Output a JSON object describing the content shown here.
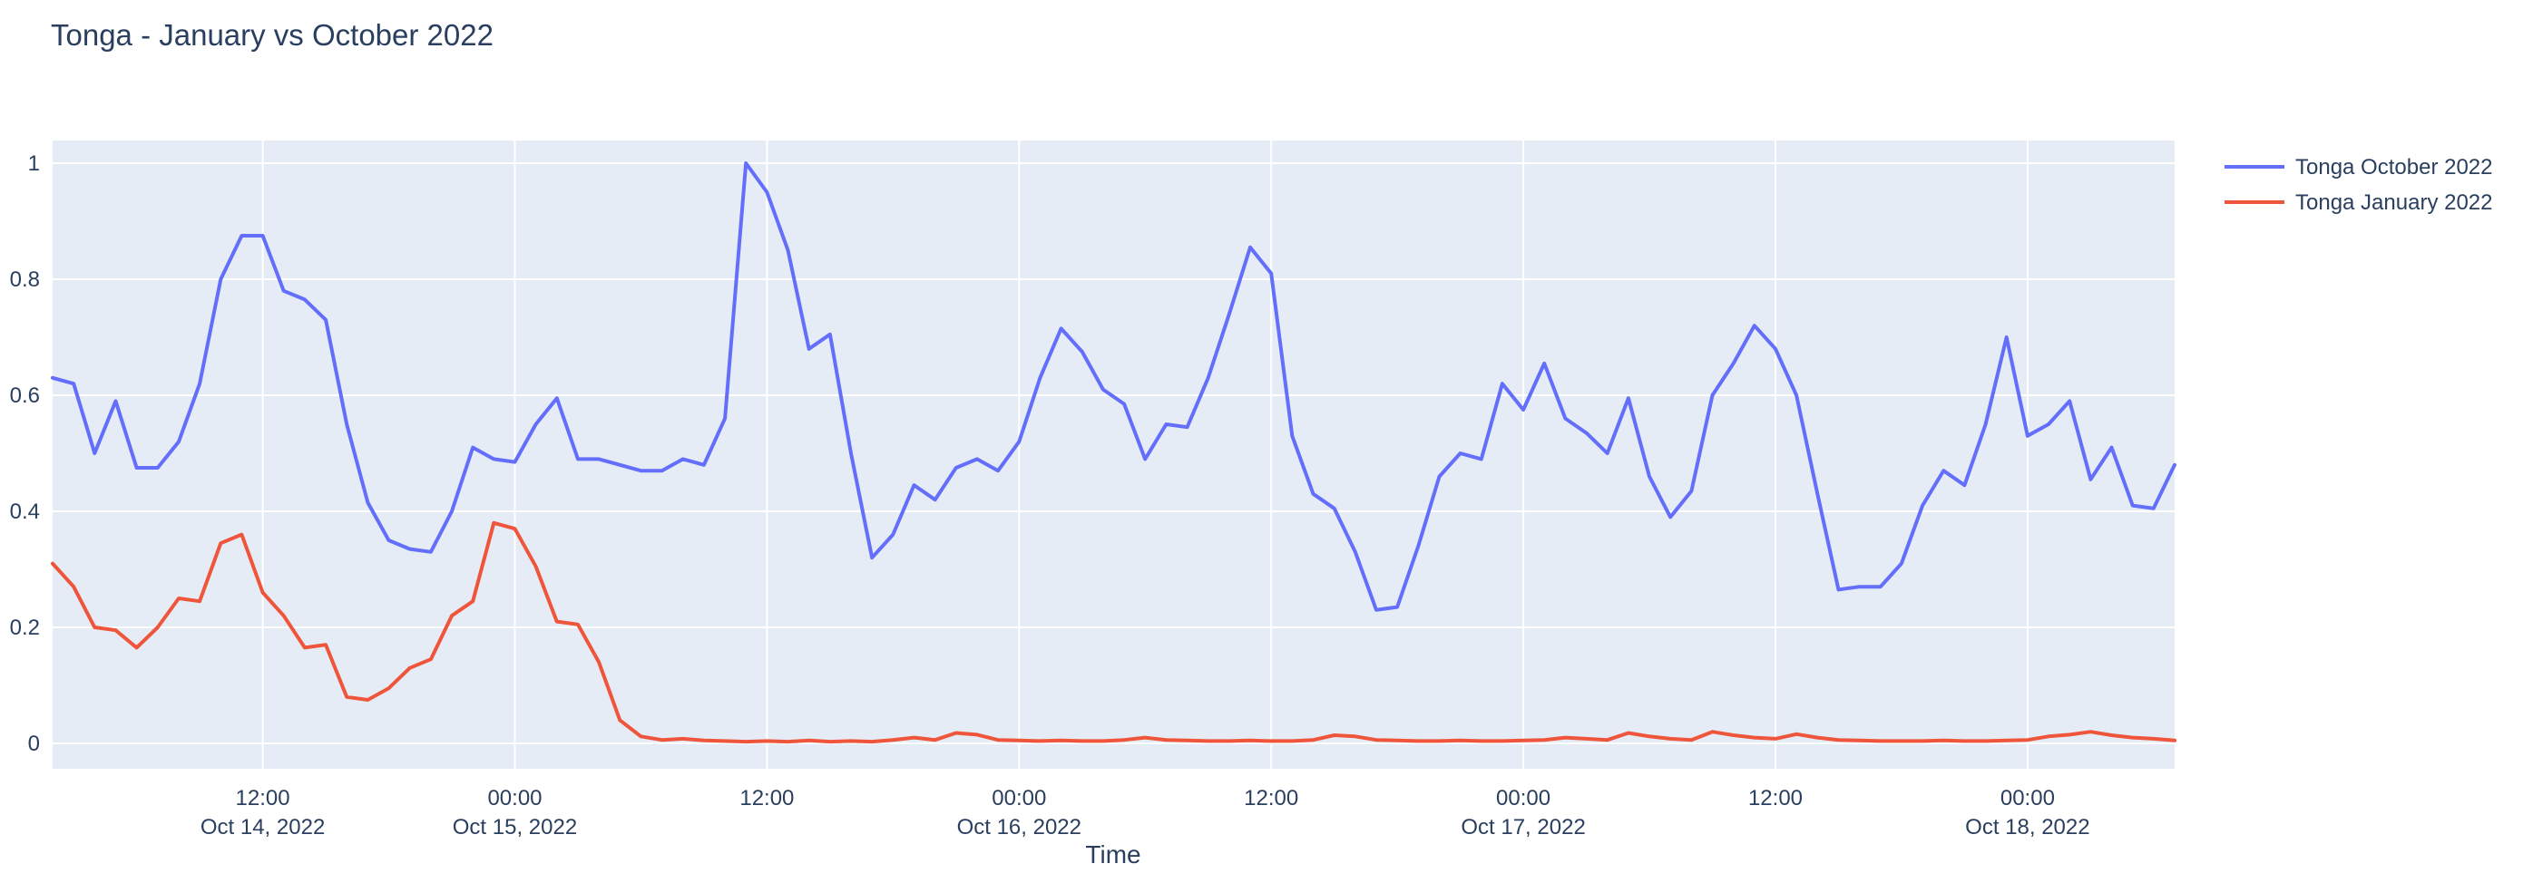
{
  "title": "Tonga - January vs October 2022",
  "colors": {
    "paper_bg": "#ffffff",
    "plot_bg": "#e5ecf6",
    "grid": "#ffffff",
    "text": "#2a3f5f",
    "series_blue": "#636efa",
    "series_red": "#ef553b"
  },
  "chart_data": {
    "type": "line",
    "title": "Tonga - January vs October 2022",
    "xlabel": "Time",
    "ylabel": "",
    "x_start": "2022-10-14 02:00",
    "x_step_hours": 1,
    "n_points": 102,
    "ylim": [
      -0.04,
      1.04
    ],
    "yticks": [
      0,
      0.2,
      0.4,
      0.6,
      0.8,
      1
    ],
    "grid": true,
    "legend_position": "top-right-outside",
    "xticks": [
      {
        "hour": 10,
        "time": "12:00",
        "date": "Oct 14, 2022"
      },
      {
        "hour": 22,
        "time": "00:00",
        "date": "Oct 15, 2022"
      },
      {
        "hour": 34,
        "time": "12:00",
        "date": ""
      },
      {
        "hour": 46,
        "time": "00:00",
        "date": "Oct 16, 2022"
      },
      {
        "hour": 58,
        "time": "12:00",
        "date": ""
      },
      {
        "hour": 70,
        "time": "00:00",
        "date": "Oct 17, 2022"
      },
      {
        "hour": 82,
        "time": "12:00",
        "date": ""
      },
      {
        "hour": 94,
        "time": "00:00",
        "date": "Oct 18, 2022"
      }
    ],
    "series": [
      {
        "name": "Tonga October 2022",
        "color": "#636efa",
        "values": [
          0.63,
          0.62,
          0.5,
          0.59,
          0.475,
          0.475,
          0.52,
          0.62,
          0.8,
          0.875,
          0.875,
          0.78,
          0.765,
          0.73,
          0.55,
          0.415,
          0.35,
          0.335,
          0.33,
          0.4,
          0.51,
          0.49,
          0.485,
          0.55,
          0.595,
          0.49,
          0.49,
          0.48,
          0.47,
          0.47,
          0.49,
          0.48,
          0.56,
          1.0,
          0.95,
          0.85,
          0.68,
          0.705,
          0.5,
          0.32,
          0.36,
          0.445,
          0.42,
          0.475,
          0.49,
          0.47,
          0.52,
          0.63,
          0.715,
          0.675,
          0.61,
          0.585,
          0.49,
          0.55,
          0.545,
          0.63,
          0.74,
          0.855,
          0.81,
          0.53,
          0.43,
          0.405,
          0.33,
          0.23,
          0.235,
          0.34,
          0.46,
          0.5,
          0.49,
          0.62,
          0.575,
          0.655,
          0.56,
          0.535,
          0.5,
          0.595,
          0.46,
          0.39,
          0.435,
          0.6,
          0.655,
          0.72,
          0.68,
          0.6,
          0.43,
          0.265,
          0.27,
          0.27,
          0.31,
          0.41,
          0.47,
          0.445,
          0.55,
          0.7,
          0.53,
          0.55,
          0.59,
          0.455,
          0.51,
          0.41,
          0.405,
          0.48
        ]
      },
      {
        "name": "Tonga January 2022",
        "color": "#ef553b",
        "values": [
          0.31,
          0.27,
          0.2,
          0.195,
          0.165,
          0.2,
          0.25,
          0.245,
          0.345,
          0.36,
          0.26,
          0.22,
          0.165,
          0.17,
          0.08,
          0.075,
          0.095,
          0.13,
          0.145,
          0.22,
          0.245,
          0.38,
          0.37,
          0.305,
          0.21,
          0.205,
          0.14,
          0.04,
          0.012,
          0.006,
          0.008,
          0.005,
          0.004,
          0.003,
          0.004,
          0.003,
          0.005,
          0.003,
          0.004,
          0.003,
          0.006,
          0.01,
          0.006,
          0.018,
          0.015,
          0.006,
          0.005,
          0.004,
          0.005,
          0.004,
          0.004,
          0.006,
          0.01,
          0.006,
          0.005,
          0.004,
          0.004,
          0.005,
          0.004,
          0.004,
          0.006,
          0.014,
          0.012,
          0.006,
          0.005,
          0.004,
          0.004,
          0.005,
          0.004,
          0.004,
          0.005,
          0.006,
          0.01,
          0.008,
          0.006,
          0.018,
          0.012,
          0.008,
          0.006,
          0.02,
          0.014,
          0.01,
          0.008,
          0.016,
          0.01,
          0.006,
          0.005,
          0.004,
          0.004,
          0.004,
          0.005,
          0.004,
          0.004,
          0.005,
          0.006,
          0.012,
          0.015,
          0.02,
          0.014,
          0.01,
          0.008,
          0.005
        ]
      }
    ]
  }
}
